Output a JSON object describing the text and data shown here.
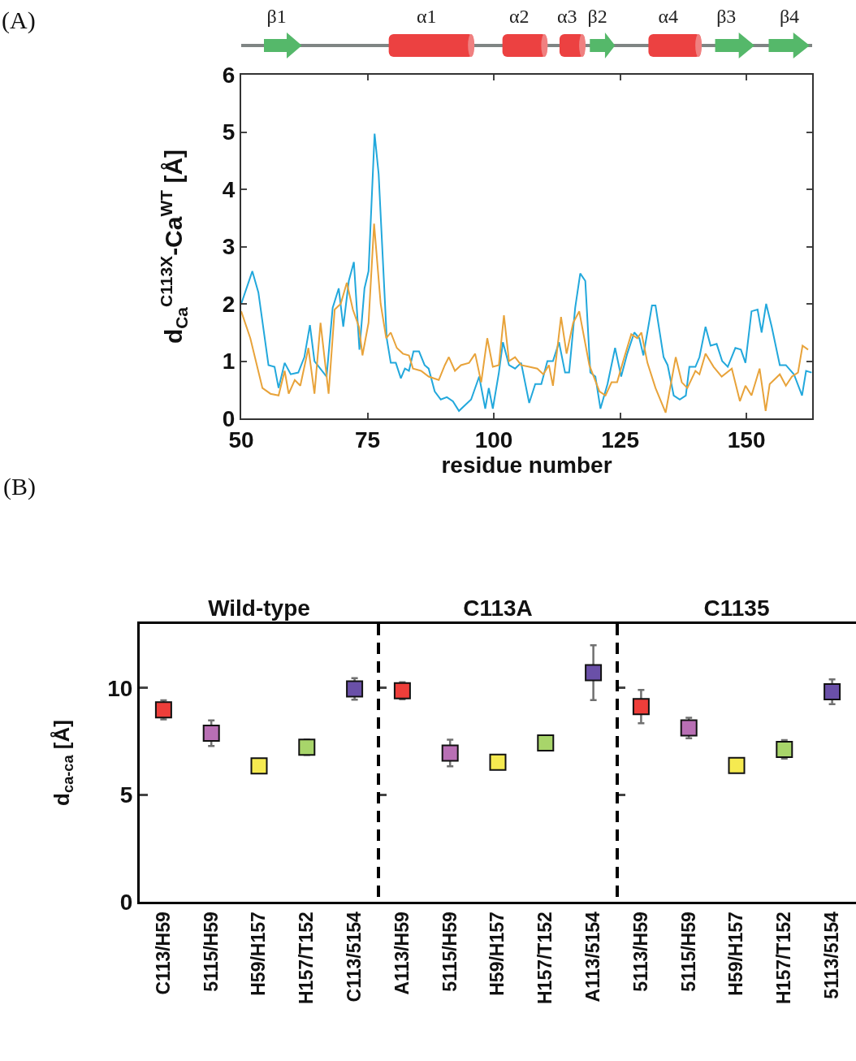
{
  "chart_data": [
    {
      "type": "line",
      "ylabel": "d$_{Ca}$$^{C113X}$-Ca$^{WT}$ [Å]",
      "xlabel": "residue number",
      "xlim": [
        50,
        163
      ],
      "ylim": [
        0,
        6
      ],
      "xticks": [
        50,
        75,
        100,
        125,
        150
      ],
      "yticks": [
        0,
        1,
        2,
        3,
        4,
        5,
        6
      ],
      "grid": false,
      "marker": "none",
      "line_style": "solid",
      "annotations": [
        "(A)",
        "β1",
        "α1",
        "α2",
        "α3",
        "β2",
        "α4",
        "β3",
        "β4"
      ],
      "series": [
        {
          "color": "#22a8dc",
          "x": [
            50,
            52.2,
            53.4,
            55.4,
            56.6,
            57.4,
            58.6,
            59.8,
            61.3,
            62.5,
            63.6,
            64.5,
            66.9,
            68.1,
            69.3,
            70.2,
            71.3,
            72.3,
            73.4,
            74.4,
            75.2,
            76.4,
            77.2,
            78.8,
            79.6,
            80.6,
            81.6,
            82.4,
            83.2,
            84.1,
            85.2,
            86.3,
            87.1,
            88.3,
            89.5,
            90.7,
            91.9,
            93.1,
            94.3,
            95.5,
            97.1,
            98.3,
            99,
            99.8,
            101,
            101.8,
            103,
            104.2,
            105.4,
            107,
            108.2,
            109.4,
            110.6,
            111.7,
            112.9,
            114.1,
            114.9,
            116.1,
            117.1,
            118.1,
            119.1,
            120.1,
            121.1,
            122.5,
            124,
            125.2,
            126.4,
            127.8,
            128.8,
            129.6,
            131.3,
            132,
            133.6,
            134.4,
            135.6,
            136.8,
            138,
            138.7,
            139.9,
            140.7,
            141.9,
            142.9,
            144.1,
            145.2,
            146.3,
            147.8,
            148.9,
            149.8,
            151,
            152.2,
            153,
            153.9,
            155,
            156.6,
            157.8,
            159.4,
            161,
            161.8,
            162.9
          ],
          "values": [
            2.0,
            2.57,
            2.2,
            0.93,
            0.9,
            0.53,
            0.97,
            0.77,
            0.8,
            1.07,
            1.63,
            1.0,
            0.73,
            1.93,
            2.27,
            1.6,
            2.4,
            2.73,
            1.2,
            2.27,
            2.57,
            4.97,
            4.27,
            1.4,
            0.97,
            0.97,
            0.7,
            0.87,
            0.83,
            1.17,
            1.17,
            0.93,
            0.87,
            0.47,
            0.33,
            0.37,
            0.3,
            0.13,
            0.23,
            0.33,
            0.73,
            0.17,
            0.53,
            0.17,
            0.8,
            1.33,
            0.93,
            0.87,
            0.97,
            0.27,
            0.6,
            0.6,
            1.0,
            1.0,
            1.33,
            0.8,
            0.8,
            1.93,
            2.53,
            2.4,
            0.8,
            0.73,
            0.17,
            0.6,
            1.23,
            0.73,
            1.13,
            1.5,
            1.4,
            1.1,
            1.97,
            1.97,
            1.07,
            0.93,
            0.4,
            0.33,
            0.4,
            0.9,
            0.9,
            1.07,
            1.6,
            1.27,
            1.3,
            1.0,
            0.9,
            1.23,
            1.2,
            0.97,
            1.87,
            1.9,
            1.5,
            2.0,
            1.6,
            0.93,
            0.93,
            0.77,
            0.4,
            0.83,
            0.8
          ]
        },
        {
          "color": "#e8a33a",
          "x": [
            50,
            51.8,
            54.2,
            55.8,
            57.4,
            58.6,
            59.4,
            60.6,
            61.7,
            63.3,
            64.5,
            65.7,
            67.3,
            68.5,
            69.7,
            70.9,
            72.1,
            73.3,
            74,
            75.2,
            76.3,
            77.6,
            78.7,
            79.6,
            80.8,
            82,
            83.2,
            84,
            85.6,
            87.1,
            89.1,
            90.3,
            91.1,
            92.3,
            93.5,
            95.1,
            96.3,
            97.5,
            98.7,
            99.8,
            101,
            102,
            103,
            104.2,
            105.4,
            107,
            108.6,
            109.8,
            110.9,
            111.7,
            113.3,
            114.4,
            115.7,
            116.9,
            118.9,
            120.9,
            122.1,
            123.3,
            124.4,
            125.6,
            127.2,
            128.4,
            129.2,
            130.4,
            132,
            134,
            136,
            137.2,
            138.3,
            139.9,
            140.7,
            141.9,
            143.5,
            145.1,
            147.1,
            148.7,
            149.8,
            151,
            152.6,
            153.8,
            154.6,
            156.6,
            157.8,
            159,
            160.2,
            161.1,
            162.2
          ],
          "values": [
            1.87,
            1.4,
            0.53,
            0.43,
            0.4,
            0.83,
            0.43,
            0.67,
            0.57,
            1.23,
            0.43,
            1.67,
            0.43,
            1.9,
            2.0,
            2.37,
            1.9,
            1.6,
            1.1,
            1.67,
            3.4,
            2.0,
            1.4,
            1.5,
            1.23,
            1.13,
            1.1,
            0.87,
            0.83,
            0.73,
            0.67,
            0.93,
            1.07,
            0.83,
            0.93,
            0.97,
            1.13,
            0.63,
            1.4,
            0.9,
            0.93,
            1.8,
            1.0,
            1.07,
            0.93,
            0.9,
            0.87,
            0.77,
            0.93,
            0.57,
            1.77,
            1.13,
            1.67,
            1.87,
            0.93,
            0.47,
            0.4,
            0.63,
            0.63,
            1.0,
            1.47,
            1.4,
            1.5,
            0.97,
            0.53,
            0.1,
            1.07,
            0.63,
            0.53,
            0.83,
            0.77,
            1.13,
            0.9,
            0.73,
            0.87,
            0.3,
            0.57,
            0.4,
            0.87,
            0.13,
            0.6,
            0.77,
            0.57,
            0.73,
            0.8,
            1.27,
            1.2
          ]
        }
      ]
    },
    {
      "type": "scatter",
      "title": "Wild-type",
      "ylabel": "d$_{ca-ca}$ [Å]",
      "categories": [
        "C113/H59",
        "5115/H59",
        "H59/H157",
        "H157/T152",
        "C113/5154"
      ],
      "values": [
        8.98,
        7.89,
        6.36,
        7.23,
        9.96
      ],
      "errors": [
        0.45,
        0.6,
        null,
        0.36,
        0.5
      ],
      "colors": [
        "#ee3e3a",
        "#b86fb4",
        "#f5ea50",
        "#a8d56a",
        "#6a50a8"
      ],
      "ylim": [
        0,
        13
      ],
      "yticks": [
        0,
        5,
        10
      ],
      "marker": "square",
      "grid": false,
      "annotations": [
        "(B)"
      ]
    },
    {
      "type": "scatter",
      "title": "C113A",
      "categories": [
        "A113/H59",
        "5115/H59",
        "H59/H157",
        "H157/T152",
        "A113/5154"
      ],
      "values": [
        9.87,
        6.96,
        6.53,
        7.43,
        10.72
      ],
      "errors": [
        0.4,
        0.62,
        null,
        null,
        1.28
      ],
      "colors": [
        "#ee3e3a",
        "#b86fb4",
        "#f5ea50",
        "#a8d56a",
        "#6a50a8"
      ],
      "ylim": [
        0,
        13
      ],
      "yticks": [
        0,
        5,
        10
      ],
      "marker": "square",
      "grid": false,
      "tick_labels": "x"
    },
    {
      "type": "scatter",
      "title": "C1135",
      "categories": [
        "5113/H59",
        "5115/H59",
        "H59/H157",
        "H157/T152",
        "5113/5154"
      ],
      "values": [
        9.13,
        8.13,
        6.38,
        7.13,
        9.83
      ],
      "errors": [
        0.78,
        0.48,
        null,
        0.43,
        0.58
      ],
      "colors": [
        "#ee3e3a",
        "#b86fb4",
        "#f5ea50",
        "#a8d56a",
        "#6a50a8"
      ],
      "ylim": [
        0,
        13
      ],
      "yticks": [
        0,
        5,
        10
      ],
      "marker": "square",
      "grid": false,
      "tick_labels": "x"
    }
  ]
}
